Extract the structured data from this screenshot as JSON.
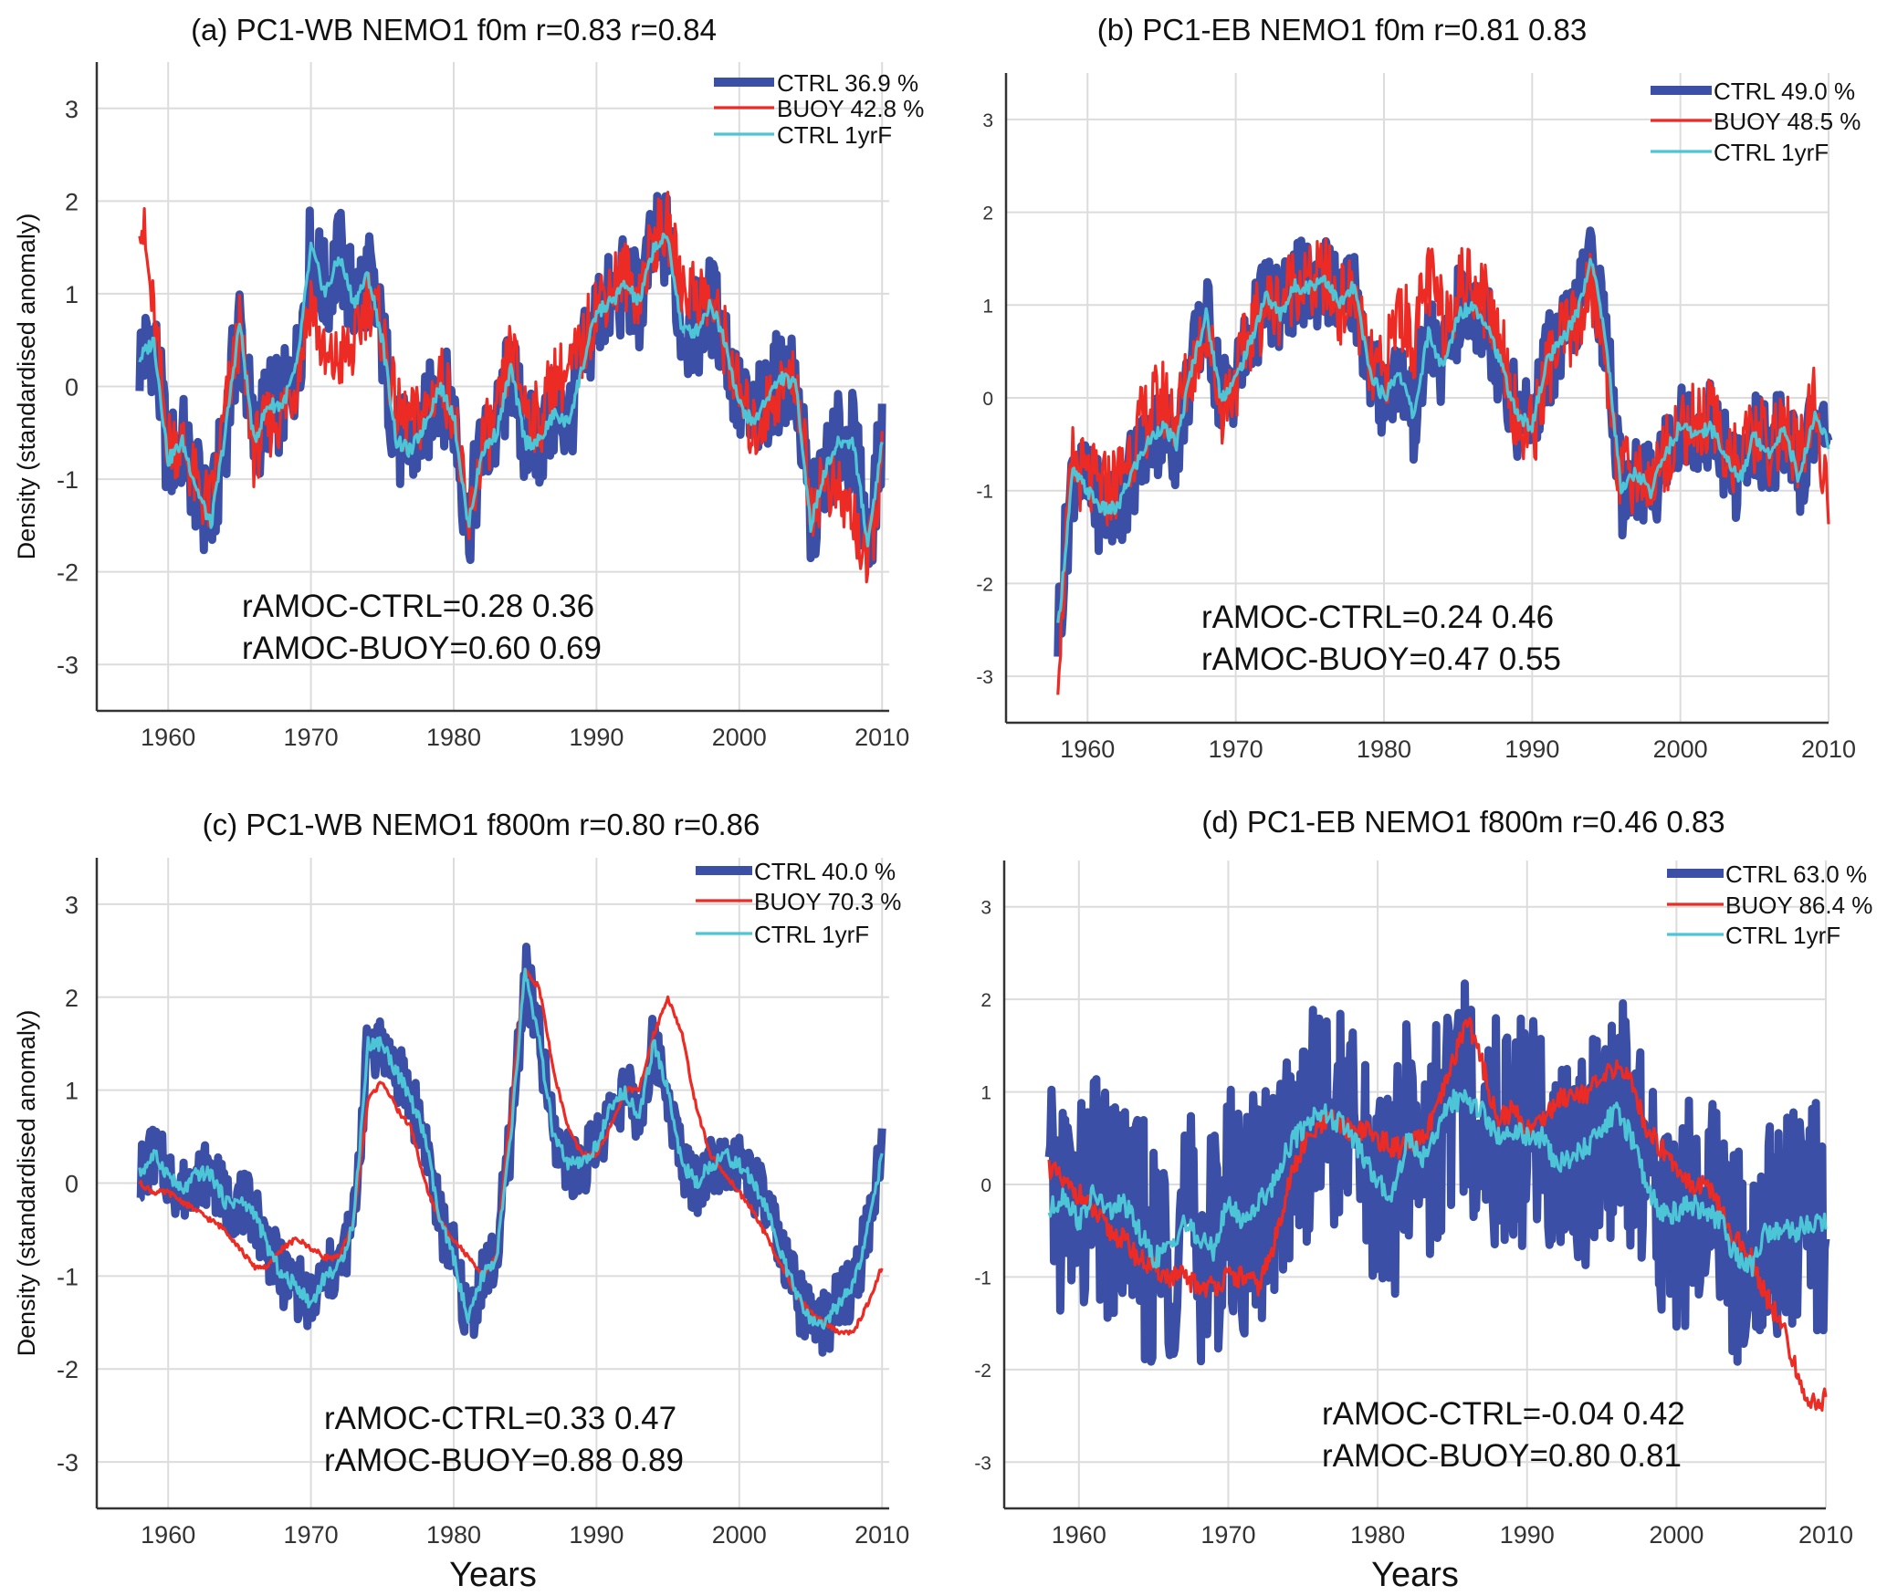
{
  "figure": {
    "xlabel_bottom": "Years",
    "ylabel_left": "Density (standardised anomaly)"
  },
  "colors": {
    "CTRL": "#3a4fa5",
    "BUOY": "#ec2b24",
    "CTRL 1yrF": "#4cc6d6",
    "grid": "#dcdcdc",
    "axis": "#333333"
  },
  "chart_data": [
    {
      "type": "line",
      "panel": "a",
      "title": "(a) PC1-WB NEMO1 f0m r=0.83 r=0.84",
      "xlabel": "",
      "ylabel": "Density (standardised anomaly)",
      "xlim": [
        1955,
        2010.5
      ],
      "ylim": [
        -3.5,
        3.5
      ],
      "xticks": [
        1960,
        1970,
        1980,
        1990,
        2000,
        2010
      ],
      "yticks": [
        -3,
        -2,
        -1,
        0,
        1,
        2,
        3
      ],
      "grid": true,
      "legend_position": "top-right",
      "annotations": [
        "rAMOC-CTRL=0.28 0.36",
        "rAMOC-BUOY=0.60 0.69"
      ],
      "years_start": 1958,
      "series": [
        {
          "name": "CTRL",
          "legend": "CTRL 36.9 %",
          "monthly_variability": 0.55,
          "values": [
            0.3,
            0.5,
            -0.8,
            -0.6,
            -1.1,
            -1.5,
            -0.5,
            0.7,
            -0.6,
            -0.2,
            -0.2,
            0.2,
            1.5,
            1.0,
            1.4,
            0.9,
            1.2,
            0.5,
            -0.6,
            -0.7,
            -0.4,
            0.0,
            -0.3,
            -1.5,
            -0.7,
            -0.5,
            0.2,
            -0.6,
            -0.6,
            -0.3,
            -0.4,
            0.2,
            0.8,
            0.9,
            1.1,
            0.9,
            1.5,
            1.6,
            0.6,
            0.6,
            0.9,
            0.5,
            -0.2,
            -0.4,
            -0.1,
            0.1,
            0.0,
            -1.5,
            -0.9,
            -0.6,
            -0.6,
            -1.7,
            -0.6
          ]
        },
        {
          "name": "BUOY",
          "legend": "BUOY 42.8 %",
          "monthly_variability": 0.4,
          "values": [
            2.0,
            0.7,
            -0.6,
            -0.6,
            -1.1,
            -1.3,
            -0.3,
            0.6,
            -0.7,
            -0.4,
            -0.3,
            0.1,
            1.0,
            0.2,
            0.3,
            0.4,
            1.0,
            0.6,
            -0.3,
            -0.4,
            -0.3,
            0.1,
            -0.2,
            -1.6,
            -0.6,
            -0.4,
            0.4,
            -0.2,
            -0.4,
            0.1,
            0.1,
            0.4,
            0.9,
            1.1,
            1.2,
            1.0,
            1.6,
            1.7,
            1.1,
            1.0,
            0.9,
            0.5,
            -0.1,
            -0.5,
            -0.2,
            0.0,
            0.1,
            -1.3,
            -1.0,
            -1.2,
            -1.4,
            -2.0,
            -0.8
          ]
        },
        {
          "name": "CTRL 1yrF",
          "legend": "CTRL 1yrF",
          "monthly_variability": 0.08,
          "values": [
            0.3,
            0.5,
            -0.8,
            -0.6,
            -1.1,
            -1.5,
            -0.5,
            0.7,
            -0.6,
            -0.2,
            -0.2,
            0.2,
            1.5,
            1.0,
            1.4,
            0.9,
            1.2,
            0.5,
            -0.6,
            -0.7,
            -0.4,
            0.0,
            -0.3,
            -1.5,
            -0.7,
            -0.5,
            0.2,
            -0.6,
            -0.6,
            -0.3,
            -0.4,
            0.2,
            0.8,
            0.9,
            1.1,
            0.9,
            1.5,
            1.6,
            0.6,
            0.6,
            0.9,
            0.5,
            -0.2,
            -0.4,
            -0.1,
            0.1,
            0.0,
            -1.5,
            -0.9,
            -0.6,
            -0.6,
            -1.7,
            -0.6
          ]
        }
      ]
    },
    {
      "type": "line",
      "panel": "b",
      "title": "(b) PC1-EB NEMO1 f0m r=0.81 0.83",
      "xlabel": "",
      "ylabel": "",
      "xlim": [
        1954.5,
        2010
      ],
      "ylim": [
        -3.5,
        3.5
      ],
      "xticks": [
        1960,
        1970,
        1980,
        1990,
        2000,
        2010
      ],
      "yticks": [
        -3,
        -2,
        -1,
        0,
        1,
        2,
        3
      ],
      "grid": true,
      "legend_position": "top-right",
      "annotations": [
        "rAMOC-CTRL=0.24 0.46",
        "rAMOC-BUOY=0.47 0.55"
      ],
      "years_start": 1958,
      "series": [
        {
          "name": "CTRL",
          "legend": "CTRL 49.0 %",
          "monthly_variability": 0.5,
          "values": [
            -2.5,
            -0.8,
            -1.0,
            -1.2,
            -1.2,
            -0.8,
            -0.5,
            -0.3,
            -0.5,
            0.3,
            0.9,
            0.0,
            0.2,
            0.6,
            1.1,
            0.9,
            1.2,
            1.2,
            1.3,
            1.0,
            1.2,
            0.3,
            0.0,
            0.3,
            -0.2,
            0.7,
            0.3,
            0.9,
            1.0,
            0.8,
            0.3,
            -0.2,
            -0.3,
            0.4,
            0.6,
            0.9,
            1.5,
            0.6,
            -1.0,
            -0.8,
            -1.0,
            -0.6,
            -0.3,
            -0.4,
            -0.3,
            -0.6,
            -0.9,
            -0.4,
            -0.6,
            -0.3,
            -0.9,
            -0.2,
            -0.5
          ]
        },
        {
          "name": "BUOY",
          "legend": "BUOY 48.5 %",
          "monthly_variability": 0.45,
          "values": [
            -2.8,
            -0.7,
            -0.9,
            -1.0,
            -0.9,
            -0.5,
            -0.2,
            0.0,
            -0.2,
            0.3,
            0.8,
            -0.1,
            0.2,
            0.7,
            1.0,
            1.0,
            1.3,
            1.2,
            1.3,
            1.0,
            1.1,
            0.3,
            0.2,
            1.0,
            0.6,
            1.3,
            0.8,
            1.2,
            1.3,
            1.0,
            0.6,
            -0.3,
            -0.4,
            0.3,
            0.6,
            0.8,
            1.2,
            0.4,
            -0.9,
            -0.8,
            -0.9,
            -0.6,
            -0.3,
            -0.3,
            -0.2,
            -0.5,
            -0.7,
            -0.4,
            -0.5,
            -0.3,
            -0.7,
            -0.1,
            -1.0
          ]
        },
        {
          "name": "CTRL 1yrF",
          "legend": "CTRL 1yrF",
          "monthly_variability": 0.08,
          "values": [
            -2.5,
            -0.8,
            -1.0,
            -1.2,
            -1.2,
            -0.8,
            -0.5,
            -0.3,
            -0.5,
            0.3,
            0.9,
            0.0,
            0.2,
            0.6,
            1.1,
            0.9,
            1.2,
            1.2,
            1.3,
            1.0,
            1.2,
            0.3,
            0.0,
            0.3,
            -0.2,
            0.7,
            0.3,
            0.9,
            1.0,
            0.8,
            0.3,
            -0.2,
            -0.3,
            0.4,
            0.6,
            0.9,
            1.5,
            0.6,
            -1.0,
            -0.8,
            -1.0,
            -0.6,
            -0.3,
            -0.4,
            -0.3,
            -0.6,
            -0.9,
            -0.4,
            -0.6,
            -0.3,
            -0.9,
            -0.2,
            -0.5
          ]
        }
      ]
    },
    {
      "type": "line",
      "panel": "c",
      "title": "(c) PC1-WB NEMO1 f800m r=0.80 r=0.86",
      "xlabel": "Years",
      "ylabel": "Density (standardised anomaly)",
      "xlim": [
        1955,
        2010.5
      ],
      "ylim": [
        -3.5,
        3.5
      ],
      "xticks": [
        1960,
        1970,
        1980,
        1990,
        2000,
        2010
      ],
      "yticks": [
        -3,
        -2,
        -1,
        0,
        1,
        2,
        3
      ],
      "grid": true,
      "legend_position": "top-right",
      "annotations": [
        "rAMOC-CTRL=0.33 0.47",
        "rAMOC-BUOY=0.88 0.89"
      ],
      "years_start": 1958,
      "series": [
        {
          "name": "CTRL",
          "legend": "CTRL 40.0 %",
          "monthly_variability": 0.35,
          "values": [
            0.1,
            0.3,
            0.1,
            -0.1,
            0.1,
            0.1,
            -0.2,
            -0.2,
            -0.3,
            -0.7,
            -1.0,
            -1.1,
            -1.3,
            -1.0,
            -0.9,
            -0.4,
            1.5,
            1.5,
            1.2,
            0.9,
            0.5,
            -0.4,
            -0.8,
            -1.5,
            -1.0,
            -0.8,
            0.5,
            2.3,
            1.5,
            0.5,
            0.2,
            0.2,
            0.4,
            0.8,
            1.0,
            0.7,
            1.5,
            1.0,
            0.2,
            0.0,
            0.2,
            0.3,
            0.2,
            0.0,
            -0.3,
            -0.8,
            -1.2,
            -1.5,
            -1.5,
            -1.3,
            -1.1,
            -0.5,
            0.3
          ]
        },
        {
          "name": "BUOY",
          "legend": "BUOY 70.3 %",
          "monthly_variability": 0.03,
          "values": [
            0.0,
            -0.1,
            -0.1,
            -0.2,
            -0.3,
            -0.4,
            -0.5,
            -0.7,
            -0.9,
            -0.9,
            -0.7,
            -0.6,
            -0.7,
            -0.8,
            -0.8,
            -0.4,
            0.9,
            1.1,
            0.8,
            0.6,
            0.0,
            -0.4,
            -0.6,
            -0.8,
            -1.0,
            -0.8,
            0.8,
            2.3,
            2.1,
            1.2,
            0.6,
            0.3,
            0.3,
            0.6,
            1.0,
            1.0,
            1.6,
            2.0,
            1.6,
            0.8,
            0.3,
            0.1,
            -0.1,
            -0.3,
            -0.6,
            -0.9,
            -1.2,
            -1.4,
            -1.5,
            -1.6,
            -1.6,
            -1.3,
            -0.9
          ]
        },
        {
          "name": "CTRL 1yrF",
          "legend": "CTRL 1yrF",
          "monthly_variability": 0.08,
          "values": [
            0.1,
            0.3,
            0.1,
            -0.1,
            0.1,
            0.1,
            -0.2,
            -0.2,
            -0.3,
            -0.7,
            -1.0,
            -1.1,
            -1.3,
            -1.0,
            -0.9,
            -0.4,
            1.5,
            1.5,
            1.2,
            0.9,
            0.5,
            -0.4,
            -0.8,
            -1.5,
            -1.0,
            -0.8,
            0.5,
            2.3,
            1.5,
            0.5,
            0.2,
            0.2,
            0.4,
            0.8,
            1.0,
            0.7,
            1.5,
            1.0,
            0.2,
            0.0,
            0.2,
            0.3,
            0.2,
            0.0,
            -0.3,
            -0.8,
            -1.2,
            -1.5,
            -1.5,
            -1.3,
            -1.1,
            -0.5,
            0.3
          ]
        }
      ]
    },
    {
      "type": "line",
      "panel": "d",
      "title": "(d) PC1-EB NEMO1 f800m r=0.46 0.83",
      "xlabel": "Years",
      "ylabel": "",
      "xlim": [
        1955,
        2010
      ],
      "ylim": [
        -3.5,
        3.5
      ],
      "xticks": [
        1960,
        1970,
        1980,
        1990,
        2000,
        2010
      ],
      "yticks": [
        -3,
        -2,
        -1,
        0,
        1,
        2,
        3
      ],
      "grid": true,
      "legend_position": "top-right",
      "annotations": [
        "rAMOC-CTRL=-0.04 0.42",
        "rAMOC-BUOY=0.80 0.81"
      ],
      "years_start": 1958,
      "series": [
        {
          "name": "CTRL",
          "legend": "CTRL 63.0 %",
          "monthly_variability": 1.3,
          "values": [
            -0.3,
            -0.1,
            -0.4,
            -0.1,
            -0.3,
            -0.2,
            -0.5,
            -0.8,
            -0.7,
            -0.4,
            -0.6,
            -0.7,
            -0.2,
            -0.4,
            -0.2,
            0.0,
            0.4,
            0.6,
            0.8,
            0.7,
            0.6,
            0.3,
            0.0,
            -0.1,
            0.5,
            0.3,
            0.6,
            0.9,
            0.9,
            0.8,
            0.5,
            0.6,
            0.5,
            0.5,
            0.2,
            0.3,
            0.4,
            0.6,
            0.8,
            0.5,
            0.0,
            -0.3,
            -0.3,
            -0.2,
            -0.3,
            -0.4,
            -0.8,
            -0.9,
            -0.5,
            -0.5,
            -0.5,
            -0.4,
            -0.4
          ]
        },
        {
          "name": "BUOY",
          "legend": "BUOY 86.4 %",
          "monthly_variability": 0.12,
          "values": [
            0.2,
            0.0,
            -0.1,
            -0.3,
            -0.5,
            -0.6,
            -0.8,
            -0.9,
            -1.0,
            -1.0,
            -1.1,
            -1.1,
            -1.0,
            -1.0,
            -1.1,
            -0.7,
            0.0,
            0.4,
            0.6,
            0.7,
            0.6,
            0.6,
            0.5,
            0.4,
            0.4,
            0.5,
            0.8,
            1.3,
            1.8,
            1.3,
            0.7,
            0.8,
            0.6,
            0.7,
            0.9,
            1.0,
            1.0,
            1.1,
            1.3,
            1.1,
            0.6,
            0.4,
            0.2,
            0.0,
            0.0,
            -0.3,
            -0.6,
            -0.8,
            -1.2,
            -1.5,
            -2.0,
            -2.4,
            -2.3
          ]
        },
        {
          "name": "CTRL 1yrF",
          "legend": "CTRL 1yrF",
          "monthly_variability": 0.12,
          "values": [
            -0.3,
            -0.1,
            -0.4,
            -0.1,
            -0.3,
            -0.2,
            -0.5,
            -0.8,
            -0.7,
            -0.4,
            -0.6,
            -0.7,
            -0.2,
            -0.4,
            -0.2,
            0.0,
            0.4,
            0.6,
            0.8,
            0.7,
            0.6,
            0.3,
            0.0,
            -0.1,
            0.5,
            0.3,
            0.6,
            0.9,
            0.9,
            0.8,
            0.5,
            0.6,
            0.5,
            0.5,
            0.2,
            0.3,
            0.4,
            0.6,
            0.8,
            0.5,
            0.0,
            -0.3,
            -0.3,
            -0.2,
            -0.3,
            -0.4,
            -0.8,
            -0.9,
            -0.5,
            -0.5,
            -0.5,
            -0.4,
            -0.4
          ]
        }
      ]
    }
  ]
}
